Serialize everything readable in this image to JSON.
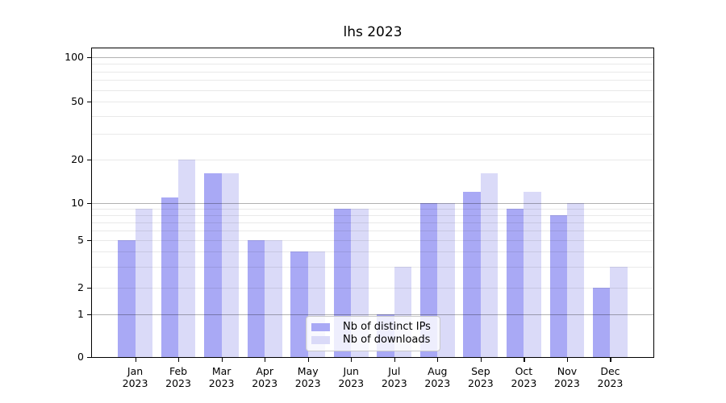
{
  "chart_data": {
    "type": "bar",
    "title": "lhs 2023",
    "categories": [
      "Jan",
      "Feb",
      "Mar",
      "Apr",
      "May",
      "Jun",
      "Jul",
      "Aug",
      "Sep",
      "Oct",
      "Nov",
      "Dec"
    ],
    "category_year": "2023",
    "series": [
      {
        "name": "Nb of distinct IPs",
        "color": "#a9a9f5",
        "values": [
          5,
          11,
          16,
          5,
          4,
          9,
          1,
          10,
          12,
          9,
          8,
          2
        ]
      },
      {
        "name": "Nb of downloads",
        "color": "#dadaf8",
        "values": [
          9,
          20,
          16,
          5,
          4,
          9,
          3,
          10,
          16,
          12,
          10,
          3
        ]
      }
    ],
    "y_axis": {
      "ticks": [
        0,
        1,
        2,
        5,
        10,
        20,
        50,
        100
      ],
      "scale": "asinh (linear 0-1, logarithmic above 1)",
      "range": [
        0,
        110
      ]
    },
    "grid": {
      "major_values": [
        1,
        10,
        100
      ],
      "minor_values": [
        2,
        3,
        4,
        5,
        6,
        7,
        8,
        9,
        20,
        30,
        40,
        50,
        60,
        70,
        80,
        90
      ],
      "on": true
    },
    "legend": {
      "position": "lower center",
      "background": "rgba(255,255,255,0.8)"
    }
  }
}
